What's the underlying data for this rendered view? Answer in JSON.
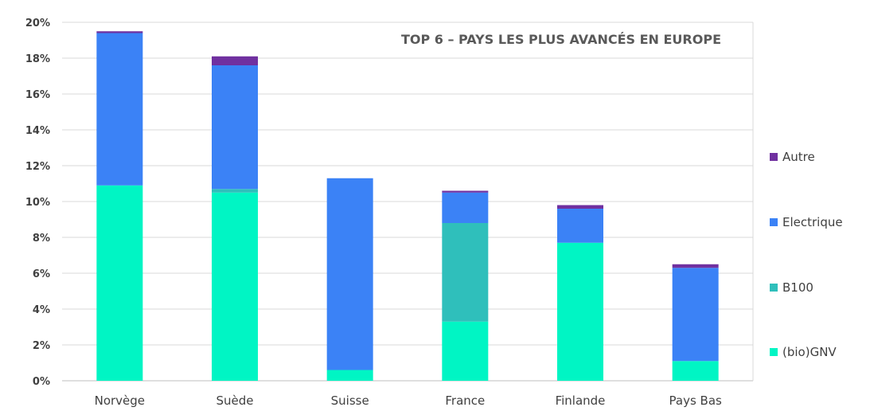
{
  "chart_data": {
    "type": "bar",
    "stacked": true,
    "title": "TOP 6 – PAYS LES PLUS AVANCÉS EN EUROPE",
    "xlabel": "",
    "ylabel": "",
    "ylim": [
      0,
      20
    ],
    "y_ticks": [
      "0%",
      "2%",
      "4%",
      "6%",
      "8%",
      "10%",
      "12%",
      "14%",
      "16%",
      "18%",
      "20%"
    ],
    "grid": true,
    "legend_position": "right",
    "categories": [
      "Norvège",
      "Suède",
      "Suisse",
      "France",
      "Finlande",
      "Pays Bas"
    ],
    "series": [
      {
        "name": "(bio)GNV",
        "color": "#00f5c4",
        "values": [
          10.9,
          10.5,
          0.6,
          3.3,
          7.7,
          1.1
        ]
      },
      {
        "name": "B100",
        "color": "#2fbfbb",
        "values": [
          0.0,
          0.2,
          0.0,
          5.5,
          0.0,
          0.0
        ]
      },
      {
        "name": "Electrique",
        "color": "#3b82f6",
        "values": [
          8.5,
          6.9,
          10.7,
          1.7,
          1.9,
          5.2
        ]
      },
      {
        "name": "Autre",
        "color": "#7030a0",
        "values": [
          0.1,
          0.5,
          0.0,
          0.1,
          0.2,
          0.2
        ]
      }
    ]
  }
}
